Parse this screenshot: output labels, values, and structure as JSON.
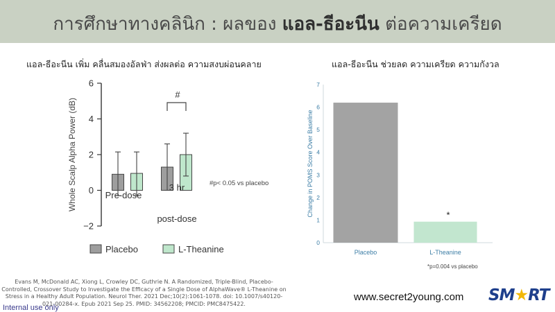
{
  "slide": {
    "title_prefix": "การศึกษาทางคลินิก : ผลของ",
    "title_emphasis": "แอล-ธีอะนีน",
    "title_suffix": "ต่อความเครียด",
    "left_subtitle": "แอล-ธีอะนีน เพิ่ม คลื่นสมองอัลฟ่า ส่งผลต่อ ความสงบผ่อนคลาย",
    "right_subtitle": "แอล-ธีอะนีน ช่วยลด ความเครียด ความกังวล",
    "citation": "Evans M, McDonald AC, Xiong L, Crowley DC, Guthrie N. A Randomized, Triple-Blind, Placebo-Controlled, Crossover Study to Investigate the Efficacy of a Single Dose of AlphaWave® L-Theanine on Stress in a Healthy Adult Population. Neurol Ther. 2021 Dec;10(2):1061-1078. doi: 10.1007/s40120-021-00284-x. Epub 2021 Sep 25. PMID: 34562208; PMCID: PMC8475422.",
    "internal_label": "Internal use only",
    "website": "www.secret2young.com",
    "logo_left": "SM",
    "logo_star": "★",
    "logo_right": "RT"
  },
  "chart_data": [
    {
      "type": "bar",
      "ylabel": "Whole Scalp Alpha Power (dB)",
      "ylim": [
        -2,
        6
      ],
      "yticks": [
        -2,
        0,
        2,
        4,
        6
      ],
      "categories": [
        "Pre-dose",
        "3 hr post-dose"
      ],
      "series": [
        {
          "name": "Placebo",
          "color": "#9e9e9e",
          "values": [
            0.9,
            1.3
          ],
          "error_high": [
            2.15,
            2.6
          ],
          "error_low": [
            -0.3,
            0.0
          ]
        },
        {
          "name": "L-Theanine",
          "color": "#bfe7cc",
          "values": [
            0.95,
            2.0
          ],
          "error_high": [
            2.15,
            3.2
          ],
          "error_low": [
            -0.3,
            0.8
          ]
        }
      ],
      "significance_mark": "#",
      "annotation": "#p< 0.05 vs placebo",
      "legend": "bottom"
    },
    {
      "type": "bar",
      "ylabel": "Change in POMS Score Over Baseline",
      "ylim": [
        0,
        7
      ],
      "yticks": [
        0,
        1,
        2,
        3,
        4,
        5,
        6,
        7
      ],
      "categories": [
        "Placebo",
        "L-Theanine"
      ],
      "values": [
        6.2,
        0.93
      ],
      "colors": [
        "#a3a3a3",
        "#c2e6cf"
      ],
      "significance_mark": "*",
      "annotation": "*p=0.004 vs placebo",
      "grid": false
    }
  ]
}
